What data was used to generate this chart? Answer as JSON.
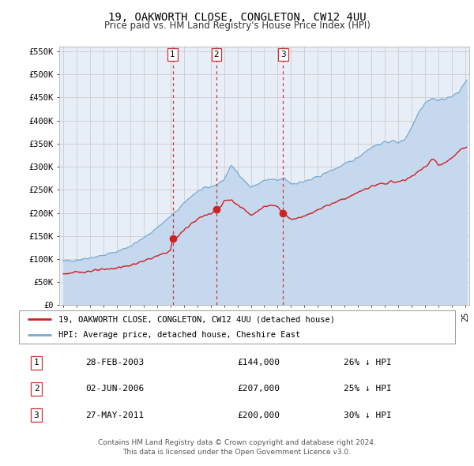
{
  "title_line1": "19, OAKWORTH CLOSE, CONGLETON, CW12 4UU",
  "title_line2": "Price paid vs. HM Land Registry's House Price Index (HPI)",
  "background_color": "#ffffff",
  "plot_bg_color": "#e8eef8",
  "grid_color": "#cccccc",
  "ylim": [
    0,
    560000
  ],
  "yticks": [
    0,
    50000,
    100000,
    150000,
    200000,
    250000,
    300000,
    350000,
    400000,
    450000,
    500000,
    550000
  ],
  "ytick_labels": [
    "£0",
    "£50K",
    "£100K",
    "£150K",
    "£200K",
    "£250K",
    "£300K",
    "£350K",
    "£400K",
    "£450K",
    "£500K",
    "£550K"
  ],
  "hpi_color": "#7aaad4",
  "hpi_fill_color": "#c5d8ee",
  "price_color": "#cc2222",
  "sale_marker_color": "#cc2222",
  "vline_color": "#cc3333",
  "sale_dates_dec": [
    2003.163,
    2006.418,
    2011.403
  ],
  "sale_prices": [
    144000,
    207000,
    200000
  ],
  "sale_labels": [
    "1",
    "2",
    "3"
  ],
  "table_rows": [
    {
      "num": "1",
      "date": "28-FEB-2003",
      "price": "£144,000",
      "hpi": "26% ↓ HPI"
    },
    {
      "num": "2",
      "date": "02-JUN-2006",
      "price": "£207,000",
      "hpi": "25% ↓ HPI"
    },
    {
      "num": "3",
      "date": "27-MAY-2011",
      "price": "£200,000",
      "hpi": "30% ↓ HPI"
    }
  ],
  "legend_line1": "19, OAKWORTH CLOSE, CONGLETON, CW12 4UU (detached house)",
  "legend_line2": "HPI: Average price, detached house, Cheshire East",
  "footer_line1": "Contains HM Land Registry data © Crown copyright and database right 2024.",
  "footer_line2": "This data is licensed under the Open Government Licence v3.0.",
  "xstart": 1994.7,
  "xend": 2025.3
}
